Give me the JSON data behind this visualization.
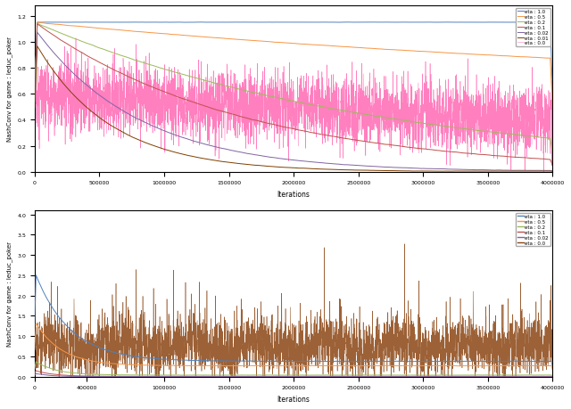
{
  "subplot1": {
    "ylabel": "NashConv for game : leduc_poker",
    "xlabel": "Iterations",
    "ylim": [
      0.0,
      1.28
    ],
    "xlim": [
      0,
      4000000
    ],
    "yticks": [
      0.0,
      0.2,
      0.4,
      0.6,
      0.8,
      1.0,
      1.2
    ],
    "xticks": [
      0,
      500000,
      1000000,
      1500000,
      2000000,
      2500000,
      3000000,
      3500000,
      4000000
    ],
    "xticklabels": [
      "0",
      "500000",
      "1000000",
      "1500000",
      "2000000",
      "2500000",
      "3000000",
      "3500000",
      "4000000"
    ]
  },
  "subplot2": {
    "ylabel": "NashConv for game : leduc_poker",
    "xlabel": "Iterations",
    "ylim": [
      0.0,
      4.1
    ],
    "xlim": [
      0,
      4000000
    ],
    "yticks": [
      0.0,
      0.5,
      1.0,
      1.5,
      2.0,
      2.5,
      3.0,
      3.5,
      4.0
    ],
    "xticks": [
      0,
      400000,
      1000000,
      1500000,
      2000000,
      2500000,
      3000000,
      3500000,
      4000000
    ],
    "xticklabels": [
      "0",
      "400000",
      "1000000",
      "1500000",
      "2000000",
      "2500000",
      "3000000",
      "3500000",
      "4000000"
    ]
  },
  "legend1": {
    "labels": [
      "eta : 1.0",
      "eta : 0.5",
      "eta : 0.2",
      "eta : 0.1",
      "eta : 0.02",
      "eta : 0.01",
      "eta : 0.0"
    ],
    "colors": [
      "#4f81bd",
      "#f79646",
      "#9bbb59",
      "#c0504d",
      "#8064a2",
      "#7f3f00",
      "#ff69b4"
    ]
  },
  "legend2": {
    "labels": [
      "eta : 1.0",
      "eta : 0.5",
      "eta : 0.2",
      "eta : 0.1",
      "eta : 0.02",
      "eta : 0.0"
    ],
    "colors": [
      "#4f81bd",
      "#f79646",
      "#9bbb59",
      "#c0504d",
      "#8064a2",
      "#8b4513"
    ]
  },
  "n_iterations": 4000000
}
